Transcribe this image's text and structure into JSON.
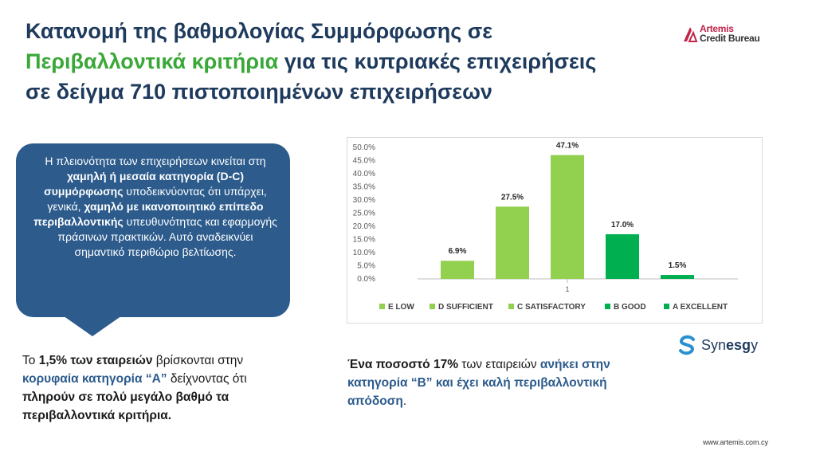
{
  "header": {
    "title_line1": "Κατανομή της βαθμολογίας Συμμόρφωσης σε",
    "title_line2_green": "Περιβαλλοντικά κριτήρια",
    "title_line2_rest": " για τις κυπριακές επιχειρήσεις",
    "title_line3": "σε δείγμα 710 πιστοποιημένων επιχειρήσεων"
  },
  "logo": {
    "line1": "Artemis",
    "line2": "Credit Bureau",
    "color": "#c0254a"
  },
  "bubble": {
    "t1": "Η πλειονότητα των επιχειρήσεων κινείται στη ",
    "b1": "χαμηλή ή μεσαία κατηγορία (D-C) συμμόρφωσης",
    "t2": " υποδεικνύοντας ότι υπάρχει, γενικά, ",
    "b2": "χαμηλό με ικανοποιητικό επίπεδο περιβαλλοντικής",
    "t3": " υπευθυνότητας και εφαρμογής πράσινων πρακτικών. Αυτό αναδεικνύει σημαντικό περιθώριο βελτίωσης.",
    "color": "#2c5b8c"
  },
  "note_left": {
    "t1": "Το ",
    "b1": "1,5% των εταιρειών",
    "t2": " βρίσκονται στην ",
    "blue1": "κορυφαία κατηγορία “A”",
    "t3": " δείχνοντας ότι ",
    "b2": "πληρούν σε πολύ μεγάλο βαθμό τα περιβαλλοντικά κριτήρια."
  },
  "note_right": {
    "b1": "Ένα ποσοστό 17%",
    "t1": " των εταιρειών ",
    "blue1": "ανήκει στην κατηγορία “B” και έχει καλή περιβαλλοντική απόδοση",
    "t2": "."
  },
  "synesgy": {
    "pre": "Syn",
    "mid": "esg",
    "post": "y"
  },
  "footer": {
    "url": "www.artemis.com.cy"
  },
  "chart_data": {
    "type": "bar",
    "categories": [
      "1"
    ],
    "series": [
      {
        "name": "E LOW",
        "values": [
          6.9
        ],
        "color": "#92d050"
      },
      {
        "name": "D SUFFICIENT",
        "values": [
          27.5
        ],
        "color": "#92d050"
      },
      {
        "name": "C SATISFACTORY",
        "values": [
          47.1
        ],
        "color": "#92d050"
      },
      {
        "name": "B GOOD",
        "values": [
          17.0
        ],
        "color": "#00b050"
      },
      {
        "name": "A  EXCELLENT",
        "values": [
          1.5
        ],
        "color": "#00b050"
      }
    ],
    "data_labels": [
      "6.9%",
      "27.5%",
      "47.1%",
      "17.0%",
      "1.5%"
    ],
    "yticks": [
      "0.0%",
      "5.0%",
      "10.0%",
      "15.0%",
      "20.0%",
      "25.0%",
      "30.0%",
      "35.0%",
      "40.0%",
      "45.0%",
      "50.0%"
    ],
    "ylim": [
      0,
      50
    ],
    "legend_position": "bottom",
    "grid": false
  }
}
